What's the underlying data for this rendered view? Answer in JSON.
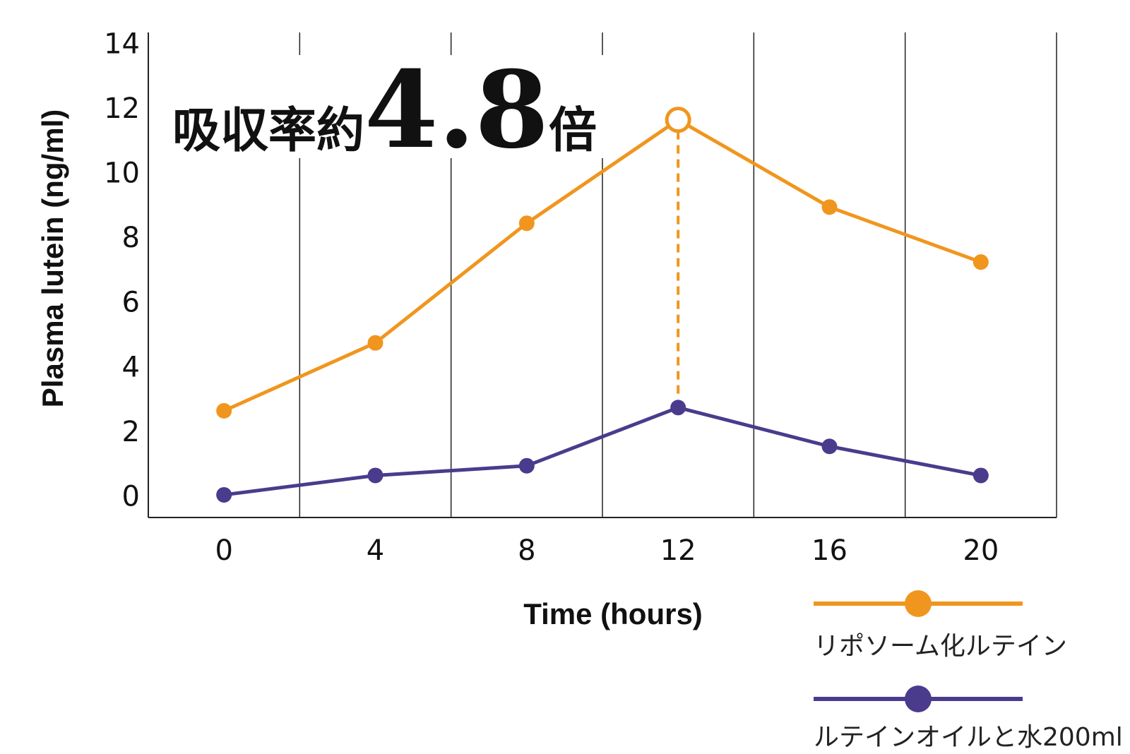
{
  "chart_data": {
    "type": "line",
    "title": "",
    "headline": {
      "prefix": "吸収率約",
      "number": "4.8",
      "suffix": "倍"
    },
    "xlabel": "Time (hours)",
    "ylabel": "Plasma lutein (ng/ml)",
    "x": [
      0,
      4,
      8,
      12,
      16,
      20
    ],
    "xlim": [
      -2,
      22
    ],
    "ylim": [
      -0.6,
      14.4
    ],
    "xticks": [
      0,
      4,
      8,
      12,
      16,
      20
    ],
    "yticks": [
      0,
      2,
      4,
      6,
      8,
      10,
      12,
      14
    ],
    "vertical_gridlines": [
      2,
      6,
      10,
      14,
      18,
      22
    ],
    "vertical_gridlines_at": "x",
    "grid": true,
    "legend_position": "bottom-right",
    "highlight": {
      "x": 12,
      "from_series": 0,
      "to_series": 1,
      "style": "dashed"
    },
    "series": [
      {
        "name": "リポソーム化ルテイン",
        "color": "#f0961e",
        "values": [
          2.7,
          4.8,
          8.5,
          11.7,
          9.0,
          7.3
        ]
      },
      {
        "name": "ルテインオイルと水200ml",
        "color": "#4b3b8c",
        "values": [
          0.1,
          0.7,
          1.0,
          2.8,
          1.6,
          0.7
        ]
      }
    ]
  }
}
